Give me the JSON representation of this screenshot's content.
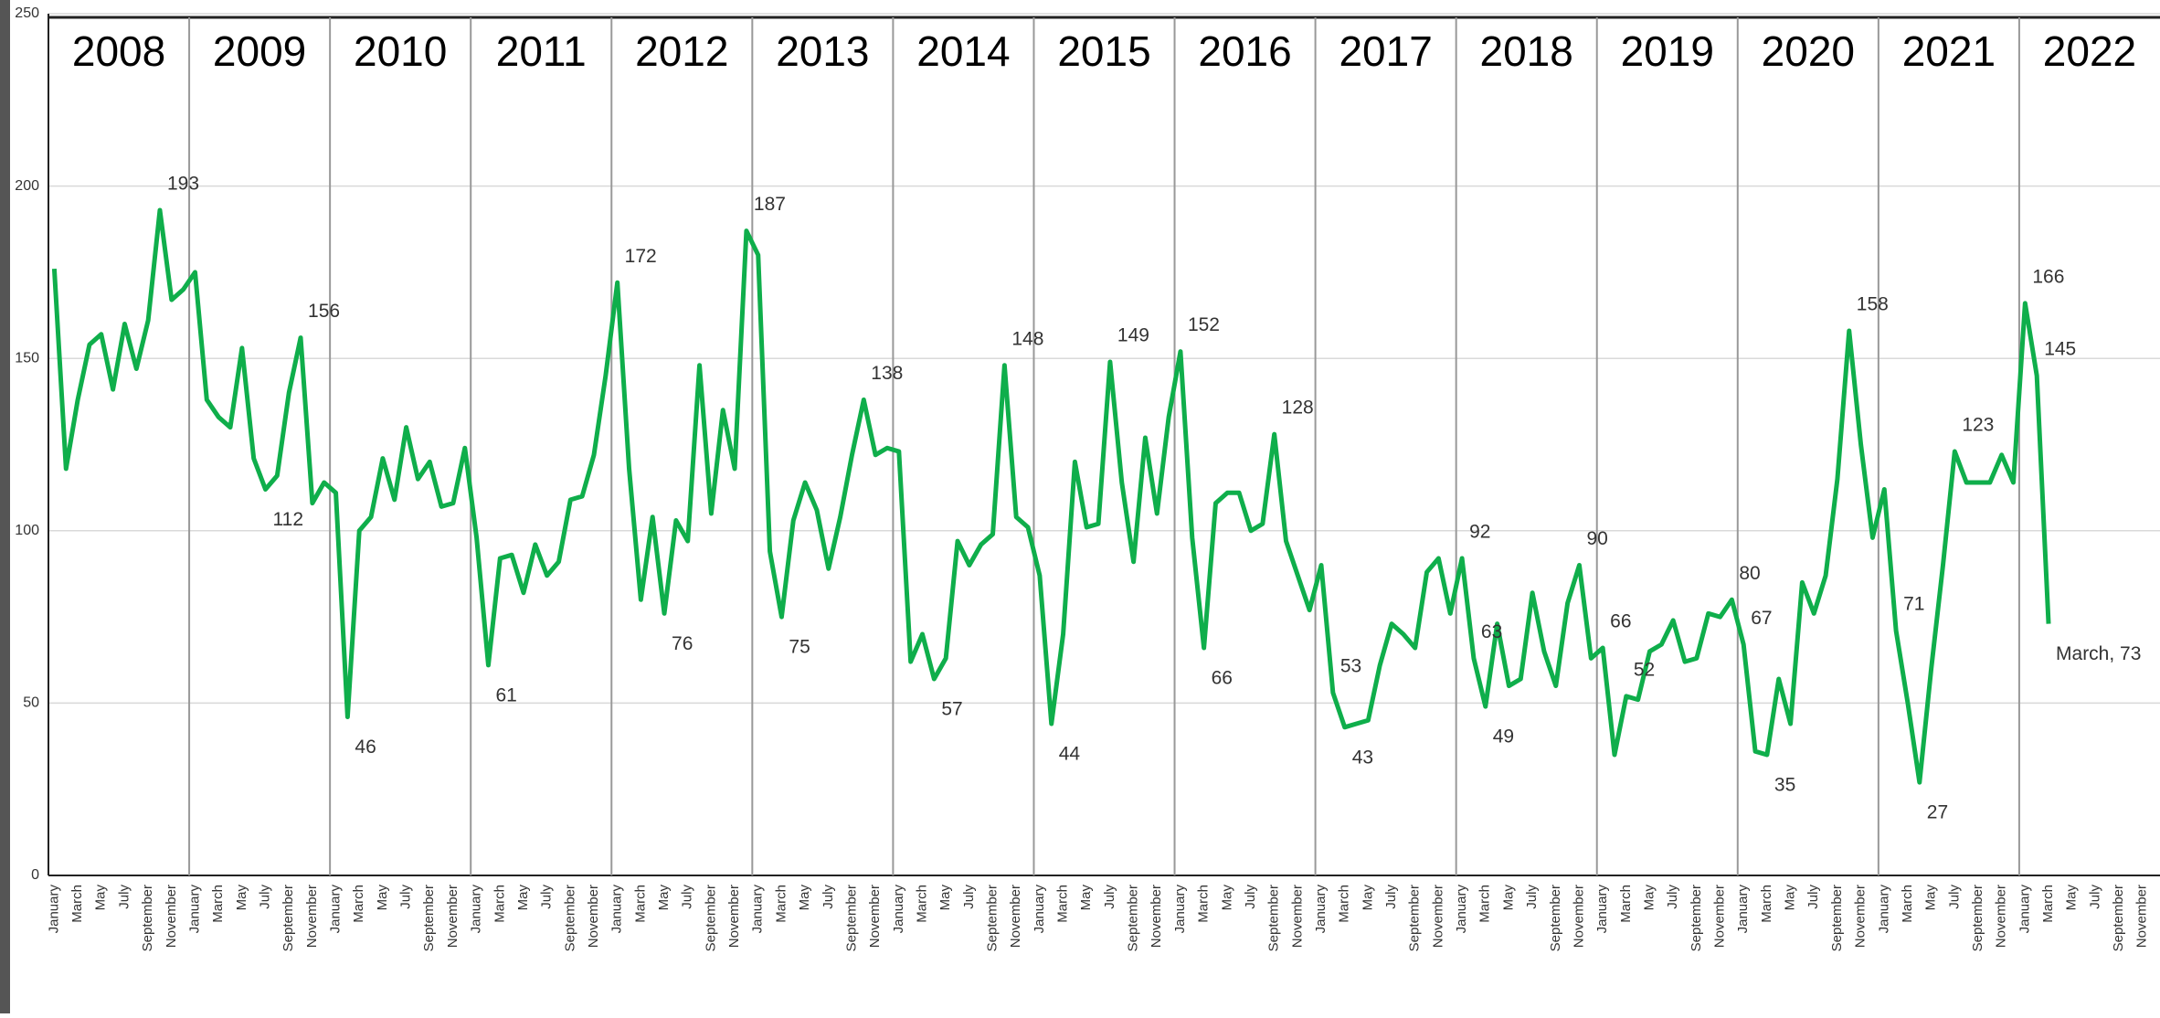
{
  "chart_data": {
    "type": "line",
    "years": [
      "2008",
      "2009",
      "2010",
      "2011",
      "2012",
      "2013",
      "2014",
      "2015",
      "2016",
      "2017",
      "2018",
      "2019",
      "2020",
      "2021",
      "2022"
    ],
    "categories": [
      "January",
      null,
      "March",
      null,
      "May",
      null,
      "July",
      null,
      "September",
      null,
      "November",
      null,
      "January",
      null,
      "March",
      null,
      "May",
      null,
      "July",
      null,
      "September",
      null,
      "November",
      null,
      "January",
      null,
      "March",
      null,
      "May",
      null,
      "July",
      null,
      "September",
      null,
      "November",
      null,
      "January",
      null,
      "March",
      null,
      "May",
      null,
      "July",
      null,
      "September",
      null,
      "November",
      null,
      "January",
      null,
      "March",
      null,
      "May",
      null,
      "July",
      null,
      "September",
      null,
      "November",
      null,
      "January",
      null,
      "March",
      null,
      "May",
      null,
      "July",
      null,
      "September",
      null,
      "November",
      null,
      "January",
      null,
      "March",
      null,
      "May",
      null,
      "July",
      null,
      "September",
      null,
      "November",
      null,
      "January",
      null,
      "March",
      null,
      "May",
      null,
      "July",
      null,
      "September",
      null,
      "November",
      null,
      "January",
      null,
      "March",
      null,
      "May",
      null,
      "July",
      null,
      "September",
      null,
      "November",
      null,
      "January",
      null,
      "March",
      null,
      "May",
      null,
      "July",
      null,
      "September",
      null,
      "November",
      null,
      "January",
      null,
      "March",
      null,
      "May",
      null,
      "July",
      null,
      "September",
      null,
      "November",
      null,
      "January",
      null,
      "March",
      null,
      "May",
      null,
      "July",
      null,
      "September",
      null,
      "November",
      null,
      "January",
      null,
      "March",
      null,
      "May",
      null,
      "July",
      null,
      "September",
      null,
      "November",
      null,
      "January",
      null,
      "March",
      null,
      "May",
      null,
      "July",
      null,
      "September",
      null,
      "November",
      null,
      "January",
      null,
      "March",
      null,
      "May",
      null,
      "July",
      null,
      "September",
      null,
      "November",
      null
    ],
    "values": [
      176,
      118,
      138,
      154,
      157,
      141,
      160,
      147,
      161,
      193,
      167,
      170,
      175,
      138,
      133,
      130,
      153,
      121,
      112,
      116,
      140,
      156,
      108,
      114,
      111,
      46,
      100,
      104,
      121,
      109,
      130,
      115,
      120,
      107,
      108,
      124,
      98,
      61,
      92,
      93,
      82,
      96,
      87,
      91,
      109,
      110,
      122,
      145,
      172,
      118,
      80,
      104,
      76,
      103,
      97,
      148,
      105,
      135,
      118,
      187,
      180,
      94,
      75,
      103,
      114,
      106,
      89,
      104,
      122,
      138,
      122,
      124,
      123,
      62,
      70,
      57,
      63,
      97,
      90,
      96,
      99,
      148,
      104,
      101,
      87,
      44,
      70,
      120,
      101,
      102,
      149,
      114,
      91,
      127,
      105,
      133,
      152,
      98,
      66,
      108,
      111,
      111,
      100,
      102,
      128,
      97,
      87,
      77,
      90,
      53,
      43,
      44,
      45,
      61,
      73,
      70,
      66,
      88,
      92,
      76,
      92,
      63,
      49,
      73,
      55,
      57,
      82,
      65,
      55,
      79,
      90,
      63,
      66,
      35,
      52,
      51,
      65,
      67,
      74,
      62,
      63,
      76,
      75,
      80,
      67,
      36,
      35,
      57,
      44,
      85,
      76,
      87,
      115,
      158,
      125,
      98,
      112,
      71,
      50,
      27,
      60,
      90,
      123,
      114,
      114,
      114,
      122,
      114,
      166,
      145,
      73,
      null,
      null,
      null,
      null,
      null,
      null,
      null,
      null,
      null
    ],
    "value_labels": [
      null,
      null,
      null,
      null,
      null,
      null,
      null,
      null,
      null,
      "193",
      null,
      null,
      null,
      null,
      null,
      null,
      null,
      null,
      "112",
      null,
      null,
      "156",
      null,
      null,
      null,
      "46",
      null,
      null,
      null,
      null,
      null,
      null,
      null,
      null,
      null,
      null,
      null,
      "61",
      null,
      null,
      null,
      null,
      null,
      null,
      null,
      null,
      null,
      null,
      "172",
      null,
      null,
      null,
      "76",
      null,
      null,
      null,
      null,
      null,
      null,
      "187",
      null,
      null,
      "75",
      null,
      null,
      null,
      null,
      null,
      null,
      "138",
      null,
      null,
      null,
      null,
      null,
      "57",
      null,
      null,
      null,
      null,
      null,
      "148",
      null,
      null,
      null,
      "44",
      null,
      null,
      null,
      null,
      "149",
      null,
      null,
      null,
      null,
      null,
      "152",
      null,
      "66",
      null,
      null,
      null,
      null,
      null,
      "128",
      null,
      null,
      null,
      null,
      "53",
      "43",
      null,
      null,
      null,
      null,
      null,
      null,
      null,
      null,
      null,
      "92",
      "63",
      "49",
      null,
      null,
      null,
      null,
      null,
      null,
      null,
      "90",
      null,
      "66",
      null,
      "52",
      null,
      null,
      null,
      null,
      null,
      null,
      null,
      null,
      "80",
      "67",
      null,
      "35",
      null,
      null,
      null,
      null,
      null,
      null,
      "158",
      null,
      null,
      null,
      "71",
      null,
      "27",
      null,
      null,
      "123",
      null,
      null,
      null,
      null,
      null,
      "166",
      "145",
      "March, 73",
      null,
      null,
      null,
      null,
      null,
      null,
      null,
      null,
      null
    ],
    "color": "#0fae4b",
    "ylim": [
      0,
      250
    ],
    "yticks": [
      0,
      50,
      100,
      150,
      200,
      250
    ],
    "grid": true
  }
}
